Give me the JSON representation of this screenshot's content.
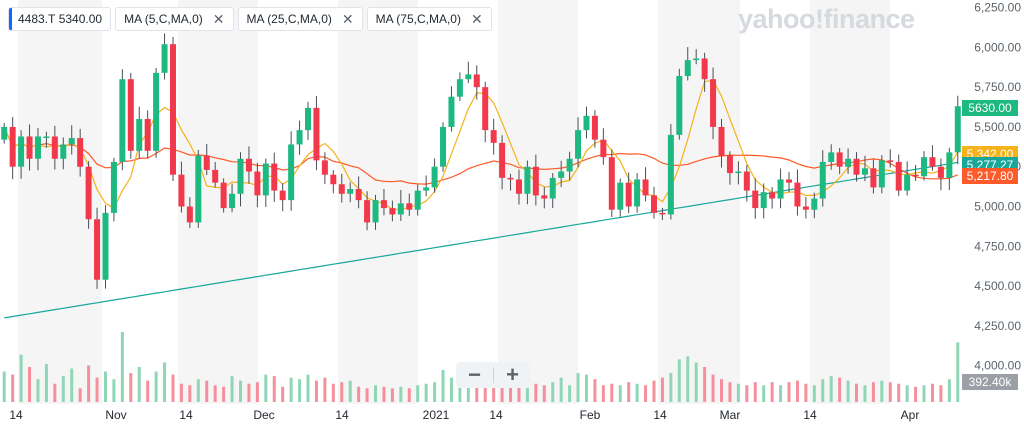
{
  "legend": {
    "ticker": "4483.T",
    "price": "5340.00",
    "indicators": [
      "MA (5,C,MA,0)",
      "MA (25,C,MA,0)",
      "MA (75,C,MA,0)"
    ],
    "close_icon": "close-icon"
  },
  "watermark": "yahoo!finance",
  "zoom": {
    "minus": "−",
    "plus": "+"
  },
  "colors": {
    "up": "#1eb980",
    "down": "#f2394c",
    "ma5": "#f5b21b",
    "ma25": "#ff5a2a",
    "ma75": "#19a79a",
    "vol_up": "#8fd6b7",
    "vol_down": "#f58f9b",
    "band": "#f5f5f5"
  },
  "chart_data": {
    "type": "candlestick",
    "y_axis": {
      "ticks": [
        "6,250.00",
        "6,000.00",
        "5,750.00",
        "5,500.00",
        "5,250.00",
        "5,000.00",
        "4,750.00",
        "4,500.00",
        "4,250.00",
        "4,000.00"
      ],
      "range": [
        3960,
        6260
      ]
    },
    "x_axis": {
      "labels": [
        "14",
        "Nov",
        "14",
        "Dec",
        "14",
        "2021",
        "14",
        "Feb",
        "14",
        "Mar",
        "14",
        "Apr"
      ]
    },
    "badges": [
      {
        "label": "5630.00",
        "value": 5630,
        "color": "#1eb980"
      },
      {
        "label": "5,342.00",
        "value": 5342,
        "color": "#f5b21b"
      },
      {
        "label": "5,277.27",
        "value": 5277.27,
        "color": "#19a79a"
      },
      {
        "label": "5,217.80",
        "value": 5217.8,
        "color": "#ff5a2a"
      },
      {
        "label": "392.40k",
        "value": "volume",
        "color": "#9aa0a6"
      }
    ],
    "closes": [
      5500,
      5250,
      5440,
      5300,
      5440,
      5440,
      5300,
      5390,
      5430,
      5250,
      4920,
      4540,
      4960,
      5280,
      5800,
      5350,
      5550,
      5350,
      5840,
      6020,
      5200,
      5000,
      4900,
      5320,
      5230,
      5150,
      4990,
      5080,
      5300,
      5220,
      5070,
      5270,
      5100,
      5040,
      5390,
      5480,
      5620,
      5290,
      5200,
      5140,
      5080,
      5110,
      5040,
      4900,
      5040,
      4990,
      4950,
      5020,
      4980,
      5100,
      5120,
      5250,
      5500,
      5690,
      5800,
      5830,
      5750,
      5480,
      5400,
      5180,
      5170,
      5080,
      5250,
      5070,
      5050,
      5180,
      5220,
      5300,
      5480,
      5570,
      5420,
      5310,
      4980,
      5150,
      5000,
      5170,
      5070,
      4960,
      4950,
      5450,
      5820,
      5920,
      5930,
      5800,
      5500,
      5320,
      5210,
      5220,
      5100,
      4990,
      5090,
      5050,
      5170,
      5150,
      5000,
      4980,
      5050,
      5280,
      5340,
      5250,
      5300,
      5200,
      5240,
      5120,
      5290,
      5280,
      5100,
      5200,
      5190,
      5310,
      5250,
      5180,
      5340,
      5630
    ],
    "volume_k": [
      200,
      180,
      310,
      230,
      150,
      250,
      120,
      170,
      220,
      90,
      240,
      160,
      200,
      150,
      460,
      190,
      230,
      140,
      200,
      260,
      180,
      120,
      110,
      150,
      140,
      110,
      100,
      170,
      140,
      120,
      130,
      180,
      170,
      100,
      160,
      150,
      180,
      140,
      160,
      120,
      130,
      140,
      100,
      90,
      110,
      100,
      90,
      100,
      90,
      110,
      120,
      130,
      210,
      160,
      180,
      150,
      190,
      230,
      180,
      140,
      150,
      130,
      100,
      120,
      110,
      130,
      160,
      110,
      190,
      180,
      150,
      110,
      120,
      110,
      130,
      120,
      110,
      140,
      160,
      190,
      280,
      300,
      260,
      230,
      180,
      150,
      130,
      120,
      110,
      130,
      110,
      130,
      110,
      130,
      140,
      120,
      110,
      150,
      170,
      160,
      140,
      120,
      110,
      130,
      140,
      130,
      120,
      110,
      100,
      110,
      120,
      110,
      150,
      392.4
    ],
    "ma5_last": 5342,
    "ma25_last": 5217.8,
    "ma75_last": 5277.27,
    "grid": false,
    "background_bands": true
  }
}
